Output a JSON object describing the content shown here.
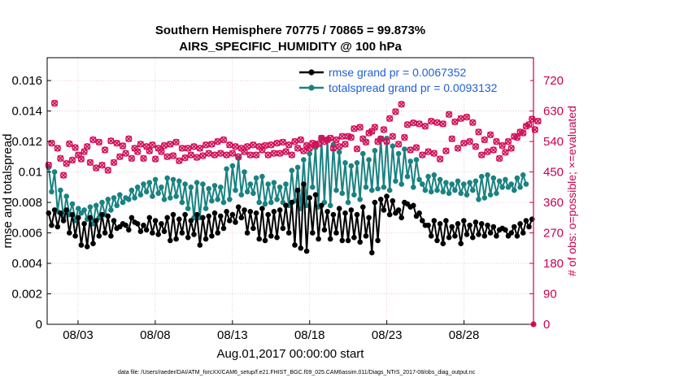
{
  "chart_data": {
    "type": "line",
    "title_line1": "Southern Hemisphere 70775 / 70865 = 99.873%",
    "title_line2": "AIRS_SPECIFIC_HUMIDITY @ 100 hPa",
    "xlabel": "Aug.01,2017 00:00:00 start",
    "ylabel": "rmse and totalspread",
    "y2label": "# of obs: o=possible; ×=evaluated",
    "footnote": "data file: /Users/raeder/DAI/ATM_forcXX/CAM6_setup/f.e21.FHIST_BGC.f09_025.CAM6assim.011/Diags_NTrS_2017-08/obs_diag_output.nc",
    "xlim": [
      1,
      32.5
    ],
    "ylim": [
      0,
      0.0175
    ],
    "y2lim": [
      0,
      787.5
    ],
    "x_ticks": [
      3,
      8,
      13,
      18,
      23,
      28
    ],
    "x_tick_labels": [
      "08/03",
      "08/08",
      "08/13",
      "08/18",
      "08/23",
      "08/28"
    ],
    "y_tick_labels": [
      "0",
      "0.002",
      "0.004",
      "0.006",
      "0.008",
      "0.01",
      "0.012",
      "0.014",
      "0.016"
    ],
    "y2_tick_labels": [
      "0",
      "90",
      "180",
      "270",
      "360",
      "450",
      "540",
      "630",
      "720"
    ],
    "grid": true,
    "colors": {
      "rmse": "#000000",
      "spread": "#1a8282",
      "obs": "#d1115a",
      "accent_axis": "#c8004f",
      "legend_text": "#1f5fd6"
    },
    "series": [
      {
        "name": "rmse grand pr = 0.0067352",
        "values": [
          0.0073,
          0.0065,
          0.0075,
          0.0064,
          0.0073,
          0.0068,
          0.0075,
          0.006,
          0.0072,
          0.0058,
          0.007,
          0.0052,
          0.0066,
          0.0051,
          0.007,
          0.0053,
          0.0068,
          0.0058,
          0.0072,
          0.006,
          0.0071,
          0.0058,
          0.0068,
          0.0063,
          0.0064,
          0.0066,
          0.0065,
          0.0062,
          0.007,
          0.0067,
          0.0066,
          0.0061,
          0.0065,
          0.0062,
          0.007,
          0.006,
          0.0068,
          0.0059,
          0.0066,
          0.0061,
          0.007,
          0.0055,
          0.0072,
          0.0056,
          0.0069,
          0.006,
          0.0072,
          0.0057,
          0.0068,
          0.0059,
          0.0072,
          0.0052,
          0.007,
          0.0056,
          0.0071,
          0.0058,
          0.0073,
          0.006,
          0.0071,
          0.0063,
          0.0074,
          0.0068,
          0.0072,
          0.0067,
          0.0077,
          0.007,
          0.0075,
          0.006,
          0.0074,
          0.0063,
          0.0073,
          0.0056,
          0.0076,
          0.0055,
          0.0072,
          0.0058,
          0.0074,
          0.0057,
          0.0075,
          0.0063,
          0.0078,
          0.006,
          0.008,
          0.0052,
          0.0088,
          0.005,
          0.0092,
          0.0048,
          0.0083,
          0.006,
          0.0085,
          0.0056,
          0.0078,
          0.0062,
          0.0074,
          0.0056,
          0.0072,
          0.006,
          0.0076,
          0.0055,
          0.0073,
          0.0055,
          0.0075,
          0.0057,
          0.0072,
          0.0054,
          0.0077,
          0.0058,
          0.007,
          0.0047,
          0.008,
          0.0055,
          0.0082,
          0.0075,
          0.0084,
          0.0072,
          0.0081,
          0.0073,
          0.0075,
          0.007,
          0.008,
          0.0079,
          0.0077,
          0.0078,
          0.0071,
          0.0073,
          0.0068,
          0.0065,
          0.0065,
          0.0058,
          0.0068,
          0.0055,
          0.0066,
          0.0053,
          0.0068,
          0.0057,
          0.0064,
          0.0058,
          0.0066,
          0.0053,
          0.0068,
          0.0059,
          0.0065,
          0.0057,
          0.0067,
          0.0059,
          0.0066,
          0.0058,
          0.0065,
          0.006,
          0.0064,
          0.0058,
          0.0062,
          0.0063,
          0.0062,
          0.0058,
          0.006,
          0.0064,
          0.0058,
          0.0066,
          0.006,
          0.0068,
          0.0064,
          0.0069
        ]
      },
      {
        "name": "totalspread grand pr = 0.0093132",
        "values": [
          0.0103,
          0.0087,
          0.01,
          0.0074,
          0.0088,
          0.007,
          0.0084,
          0.0072,
          0.0079,
          0.0068,
          0.0076,
          0.0073,
          0.0075,
          0.0069,
          0.0077,
          0.0066,
          0.0078,
          0.007,
          0.008,
          0.0072,
          0.0082,
          0.0075,
          0.0083,
          0.0078,
          0.0085,
          0.008,
          0.0083,
          0.0082,
          0.0088,
          0.0083,
          0.009,
          0.0085,
          0.0092,
          0.0087,
          0.0093,
          0.0084,
          0.0095,
          0.0086,
          0.009,
          0.0082,
          0.0096,
          0.0083,
          0.0095,
          0.0084,
          0.0094,
          0.008,
          0.0092,
          0.0076,
          0.009,
          0.007,
          0.0093,
          0.007,
          0.0092,
          0.0076,
          0.0089,
          0.0081,
          0.0091,
          0.0082,
          0.009,
          0.008,
          0.0102,
          0.0082,
          0.0104,
          0.0088,
          0.0109,
          0.0085,
          0.01,
          0.0087,
          0.0092,
          0.0086,
          0.0096,
          0.008,
          0.0097,
          0.0079,
          0.0092,
          0.008,
          0.0093,
          0.0082,
          0.009,
          0.008,
          0.0092,
          0.0078,
          0.0101,
          0.0081,
          0.0103,
          0.0076,
          0.0108,
          0.0078,
          0.0112,
          0.009,
          0.0116,
          0.0077,
          0.0122,
          0.008,
          0.0121,
          0.0078,
          0.0118,
          0.0088,
          0.0113,
          0.0086,
          0.0106,
          0.008,
          0.0104,
          0.0085,
          0.0106,
          0.0082,
          0.0112,
          0.009,
          0.0108,
          0.0088,
          0.0114,
          0.0089,
          0.0122,
          0.009,
          0.0122,
          0.0088,
          0.0117,
          0.0094,
          0.0112,
          0.0092,
          0.0115,
          0.0097,
          0.0107,
          0.009,
          0.0108,
          0.0095,
          0.0092,
          0.0088,
          0.0097,
          0.0087,
          0.0098,
          0.0088,
          0.0095,
          0.0087,
          0.0093,
          0.0086,
          0.0092,
          0.0088,
          0.0094,
          0.0086,
          0.0092,
          0.0085,
          0.0093,
          0.0088,
          0.0094,
          0.0082,
          0.0097,
          0.0083,
          0.0098,
          0.0085,
          0.0096,
          0.0086,
          0.0094,
          0.009,
          0.0095,
          0.009,
          0.0092,
          0.0088,
          0.0096,
          0.009,
          0.0098,
          0.0092
        ]
      },
      {
        "name": "# of obs possible / evaluated",
        "axis": "right",
        "values": [
          470,
          535,
          653,
          520,
          490,
          440,
          475,
          533,
          485,
          522,
          500,
          488,
          510,
          525,
          478,
          545,
          462,
          538,
          470,
          515,
          455,
          542,
          478,
          535,
          495,
          527,
          505,
          548,
          490,
          520,
          510,
          532,
          490,
          525,
          512,
          530,
          488,
          520,
          510,
          528,
          495,
          532,
          498,
          538,
          483,
          520,
          492,
          520,
          500,
          525,
          493,
          520,
          498,
          530,
          505,
          532,
          500,
          540,
          505,
          545,
          500,
          530,
          505,
          525,
          495,
          520,
          510,
          525,
          500,
          530,
          500,
          525,
          515,
          528,
          500,
          530,
          505,
          535,
          505,
          538,
          510,
          530,
          500,
          540,
          520,
          545,
          512,
          528,
          520,
          535,
          530,
          533,
          550,
          540,
          545,
          550,
          520,
          545,
          525,
          555,
          532,
          555,
          552,
          578,
          518,
          582,
          548,
          538,
          565,
          570,
          582,
          540,
          548,
          575,
          540,
          608,
          555,
          628,
          532,
          650,
          552,
          590,
          515,
          595,
          522,
          592,
          500,
          585,
          510,
          600,
          505,
          596,
          488,
          592,
          512,
          620,
          548,
          598,
          520,
          608,
          535,
          612,
          540,
          596,
          525,
          568,
          500,
          545,
          510,
          560,
          515,
          540,
          490,
          528,
          508,
          540,
          520,
          555,
          552,
          568,
          565,
          585,
          590,
          606,
          575,
          600
        ]
      }
    ],
    "legend": [
      "rmse grand pr = 0.0067352",
      "totalspread grand pr = 0.0093132"
    ],
    "legend_position": "top-right"
  }
}
